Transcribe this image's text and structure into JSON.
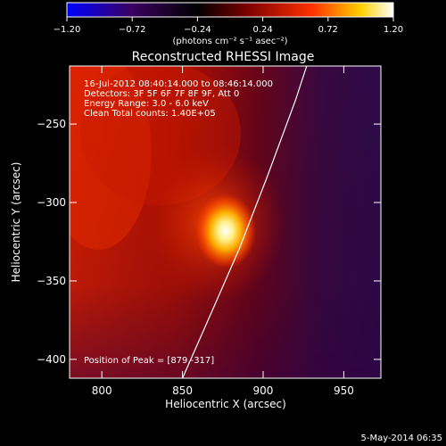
{
  "chart_data": {
    "type": "heatmap",
    "title": "Reconstructed RHESSI Image",
    "xlabel": "Heliocentric X (arcsec)",
    "ylabel": "Heliocentric Y (arcsec)",
    "xlim": [
      780,
      973
    ],
    "ylim": [
      -412,
      -213
    ],
    "x_ticks": [
      800,
      850,
      900,
      950
    ],
    "y_ticks": [
      -250,
      -300,
      -350,
      -400
    ],
    "x_tick_labels": [
      "800",
      "850",
      "900",
      "950"
    ],
    "y_tick_labels": [
      "−250",
      "−300",
      "−350",
      "−400"
    ],
    "colorbar": {
      "range": [
        -1.2,
        1.2
      ],
      "ticks": [
        -1.2,
        -0.72,
        -0.24,
        0.24,
        0.72,
        1.2
      ],
      "tick_labels": [
        "−1.20",
        "−0.72",
        "−0.24",
        "0.24",
        "0.72",
        "1.20"
      ],
      "unit_label": "(photons cm⁻² s⁻¹ asec⁻²)",
      "colors": [
        "#0000ff",
        "#3a0060",
        "#000000",
        "#7a0000",
        "#ff3000",
        "#ffd000",
        "#ffffff"
      ]
    },
    "annotations": [
      "16-Jul-2012 08:40:14.000 to 08:46:14.000",
      "Detectors: 3F 5F 6F 7F 8F 9F, Att 0",
      "Energy Range: 3.0 - 6.0 keV",
      "Clean     Total counts: 1.40E+05"
    ],
    "peak_label": "Position of Peak = [879,-317]",
    "peak": [
      879,
      -317
    ],
    "limb_line": [
      [
        850,
        -412
      ],
      [
        868,
        -370
      ],
      [
        885,
        -330
      ],
      [
        902,
        -285
      ],
      [
        920,
        -235
      ],
      [
        927,
        -213
      ]
    ],
    "timestamp": "5-May-2014 06:35"
  }
}
